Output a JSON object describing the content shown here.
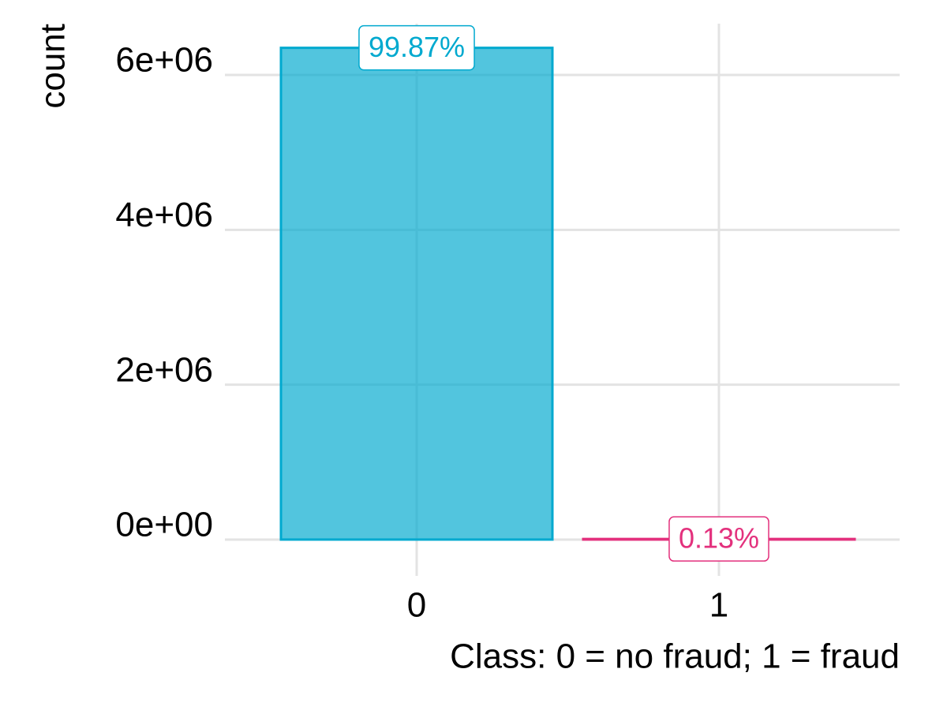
{
  "chart_data": {
    "type": "bar",
    "xlabel": "Class: 0 = no fraud; 1 = fraud",
    "ylabel": "count",
    "categories": [
      "0",
      "1"
    ],
    "values": [
      6350000,
      8200
    ],
    "share_labels": [
      "99.87%",
      "0.13%"
    ],
    "colors": [
      "#00a9cf",
      "#e3317d"
    ],
    "ylim": [
      -367000,
      6662000
    ],
    "yticks": [
      {
        "value": 0,
        "label": "0e+00"
      },
      {
        "value": 2000000,
        "label": "2e+06"
      },
      {
        "value": 4000000,
        "label": "4e+06"
      },
      {
        "value": 6000000,
        "label": "6e+06"
      }
    ],
    "grid": true
  }
}
